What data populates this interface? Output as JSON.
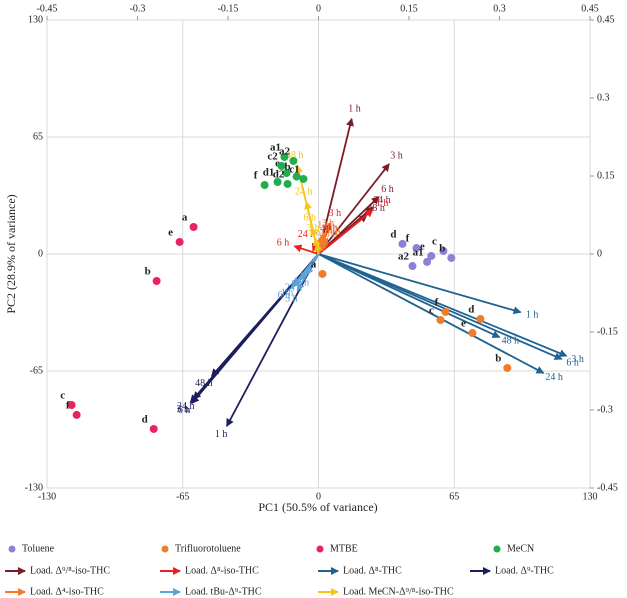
{
  "chart_data": {
    "type": "scatter",
    "xlabel": "PC1 (50.5% of variance)",
    "ylabel": "PC2 (28.9% of variance)",
    "xlim": [
      -130,
      130
    ],
    "xticks": [
      -130,
      -65,
      0,
      65,
      130
    ],
    "ylim": [
      -130,
      130
    ],
    "yticks": [
      -130,
      -65,
      0,
      65,
      130
    ],
    "x2lim": [
      -0.45,
      0.45
    ],
    "x2ticks": [
      -0.45,
      -0.3,
      -0.15,
      0,
      0.15,
      0.3,
      0.45
    ],
    "y2lim": [
      -0.45,
      0.45
    ],
    "y2ticks": [
      -0.45,
      -0.3,
      -0.15,
      0,
      0.15,
      0.3,
      0.45
    ],
    "grid": true,
    "series": [
      {
        "name": "Toluene",
        "color": "#8f7fd6",
        "labels": [
          "d",
          "f",
          "e",
          "c",
          "b",
          "a1",
          "a2"
        ],
        "x": [
          40.2,
          46.9,
          54,
          59.8,
          63.6,
          52,
          45
        ],
        "y": [
          5.6,
          3.3,
          -1.1,
          1.7,
          -2.2,
          -4.4,
          -6.7
        ]
      },
      {
        "name": "Trifluorotoluene",
        "color": "#f07b28",
        "labels": [
          "a",
          "f",
          "c",
          "d",
          "e",
          "b"
        ],
        "x": [
          1.9,
          60.8,
          58.4,
          77.5,
          73.7,
          90.4
        ],
        "y": [
          -11.1,
          -32.2,
          -36.7,
          -36.1,
          -43.9,
          -63.3
        ]
      },
      {
        "name": "MTBE",
        "color": "#e8245e",
        "labels": [
          "a",
          "e",
          "b",
          "d",
          "c",
          "f"
        ],
        "x": [
          -59.8,
          -66.5,
          -77.5,
          -78.9,
          -118.2,
          -115.8
        ],
        "y": [
          15,
          6.7,
          -15,
          -97.2,
          -83.9,
          -89.4
        ]
      },
      {
        "name": "MeCN",
        "color": "#1fae4a",
        "labels": [
          "a1",
          "a2",
          "c1",
          "e",
          "c2",
          "f",
          "d1",
          "d2",
          "b"
        ],
        "x": [
          -16.3,
          -12,
          -7.2,
          -15.3,
          -17.7,
          -25.8,
          -19.6,
          -14.8,
          -10.5
        ],
        "y": [
          53.9,
          51.7,
          41.7,
          45,
          48.9,
          38.3,
          40,
          38.9,
          43
        ]
      }
    ],
    "loadings": [
      {
        "name": "Load. Δ⁹/⁸-iso-THC",
        "color": "#7b1c2a",
        "axis": "y2",
        "labels": [
          "1 h",
          "3 h",
          "6 h",
          "24 h",
          "48 h"
        ],
        "x": [
          0.055,
          0.117,
          0.1,
          0.09,
          0.08
        ],
        "y": [
          0.26,
          0.173,
          0.11,
          0.09,
          0.075
        ]
      },
      {
        "name": "Load. Δ⁸-iso-THC",
        "color": "#e8201f",
        "axis": "y2",
        "labels": [
          "1 h",
          "3 h",
          "6 h",
          "24 h",
          "48 h"
        ],
        "x": [
          0.09,
          0.02,
          -0.04,
          -0.01,
          0.01
        ],
        "y": [
          0.085,
          0.06,
          0.015,
          0.02,
          0.03
        ]
      },
      {
        "name": "Load. Δ⁸-THC",
        "color": "#1f6391",
        "axis": "y2",
        "labels": [
          "1 h",
          "3 h",
          "6 h",
          "24 h",
          "48 h"
        ],
        "x": [
          0.335,
          0.411,
          0.403,
          0.373,
          0.3
        ],
        "y": [
          -0.112,
          -0.196,
          -0.202,
          -0.229,
          -0.16
        ]
      },
      {
        "name": "Load. Δ⁹-THC",
        "color": "#1b1f5e",
        "axis": "y2",
        "labels": [
          "1 h",
          "3 h",
          "6 h",
          "24 h",
          "48 h"
        ],
        "x": [
          -0.152,
          -0.212,
          -0.21,
          -0.207,
          -0.177
        ],
        "y": [
          -0.331,
          -0.285,
          -0.287,
          -0.279,
          -0.235
        ]
      },
      {
        "name": "Load. Δ⁴-iso-THC",
        "color": "#f07b28",
        "axis": "y2",
        "labels": [
          "1 h",
          "3 h",
          "6 h",
          "24 h",
          "48 h"
        ],
        "x": [
          0.005,
          0.01,
          0.015,
          0.012,
          0.008
        ],
        "y": [
          0.035,
          0.04,
          0.03,
          0.025,
          0.02
        ]
      },
      {
        "name": "Load. tBu-Δ⁹-THC",
        "color": "#5ba3d9",
        "axis": "y2",
        "labels": [
          "1 h",
          "3 h",
          "6 h",
          "24 h",
          "48 h"
        ],
        "x": [
          -0.04,
          -0.035,
          -0.045,
          -0.03,
          -0.02
        ],
        "y": [
          -0.06,
          -0.07,
          -0.065,
          -0.05,
          -0.04
        ]
      },
      {
        "name": "Load. MeCN-Δ⁹/⁸-iso-THC",
        "color": "#f5c518",
        "axis": "y2",
        "labels": [
          "1 h",
          "3 h",
          "6 h",
          "24 h",
          "48 h"
        ],
        "x": [
          -0.003,
          -0.005,
          -0.01,
          -0.02,
          -0.035
        ],
        "y": [
          0.02,
          0.03,
          0.05,
          0.1,
          0.17
        ]
      }
    ]
  }
}
